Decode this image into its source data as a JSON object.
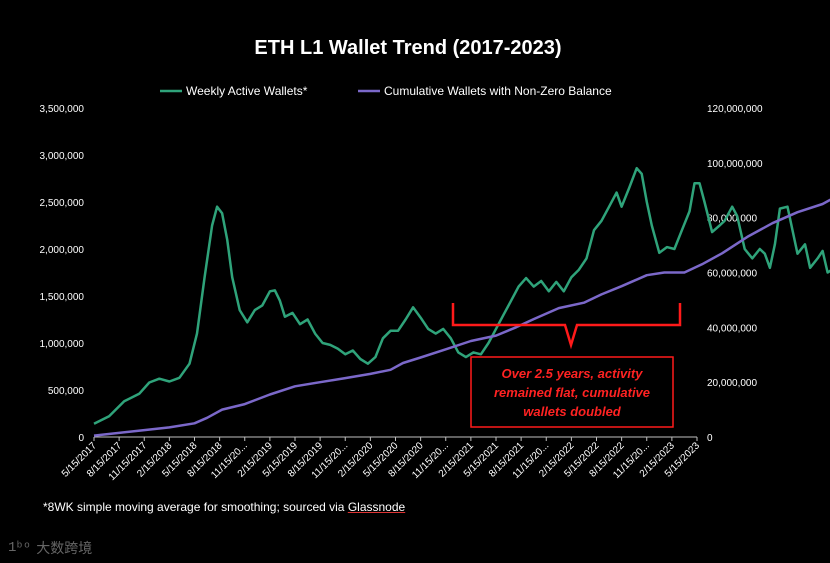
{
  "chart_data": {
    "type": "line",
    "title": "ETH L1 Wallet Trend (2017-2023)",
    "left_axis": {
      "min": 0,
      "max": 3500000,
      "ticks": [
        "0",
        "500,000",
        "1,000,000",
        "1,500,000",
        "2,000,000",
        "2,500,000",
        "3,000,000",
        "3,500,000"
      ],
      "tick_values": [
        0,
        500000,
        1000000,
        1500000,
        2000000,
        2500000,
        3000000,
        3500000
      ]
    },
    "right_axis": {
      "min": 0,
      "max": 120000000,
      "ticks": [
        "0",
        "20,000,000",
        "40,000,000",
        "60,000,000",
        "80,000,000",
        "100,000,000",
        "120,000,000"
      ],
      "tick_values": [
        0,
        20000000,
        40000000,
        60000000,
        80000000,
        100000000,
        120000000
      ]
    },
    "x_ticks": [
      "5/15/2017",
      "8/15/2017",
      "11/15/2017",
      "2/15/2018",
      "5/15/2018",
      "8/15/2018",
      "11/15/20...",
      "2/15/2019",
      "5/15/2019",
      "8/15/2019",
      "11/15/20...",
      "2/15/2020",
      "5/15/2020",
      "8/15/2020",
      "11/15/20...",
      "2/15/2021",
      "5/15/2021",
      "8/15/2021",
      "11/15/20...",
      "2/15/2022",
      "5/15/2022",
      "8/15/2022",
      "11/15/20...",
      "2/15/2023",
      "5/15/2023"
    ],
    "grid": false,
    "legend_position": "top",
    "series": [
      {
        "name": "Weekly Active Wallets*",
        "axis": "left",
        "color": "#2fa37a",
        "points": [
          [
            0,
            140000
          ],
          [
            0.6,
            220000
          ],
          [
            1.2,
            380000
          ],
          [
            1.8,
            460000
          ],
          [
            2.2,
            580000
          ],
          [
            2.6,
            620000
          ],
          [
            3.0,
            590000
          ],
          [
            3.4,
            630000
          ],
          [
            3.8,
            780000
          ],
          [
            4.1,
            1100000
          ],
          [
            4.4,
            1700000
          ],
          [
            4.7,
            2250000
          ],
          [
            4.9,
            2450000
          ],
          [
            5.1,
            2380000
          ],
          [
            5.3,
            2100000
          ],
          [
            5.5,
            1700000
          ],
          [
            5.8,
            1350000
          ],
          [
            6.1,
            1220000
          ],
          [
            6.4,
            1350000
          ],
          [
            6.7,
            1400000
          ],
          [
            7.0,
            1550000
          ],
          [
            7.2,
            1560000
          ],
          [
            7.4,
            1450000
          ],
          [
            7.6,
            1280000
          ],
          [
            7.9,
            1320000
          ],
          [
            8.2,
            1200000
          ],
          [
            8.5,
            1250000
          ],
          [
            8.8,
            1100000
          ],
          [
            9.1,
            1000000
          ],
          [
            9.4,
            980000
          ],
          [
            9.7,
            940000
          ],
          [
            10.0,
            880000
          ],
          [
            10.3,
            920000
          ],
          [
            10.6,
            830000
          ],
          [
            10.9,
            780000
          ],
          [
            11.2,
            850000
          ],
          [
            11.5,
            1050000
          ],
          [
            11.8,
            1130000
          ],
          [
            12.1,
            1130000
          ],
          [
            12.4,
            1250000
          ],
          [
            12.7,
            1380000
          ],
          [
            13.0,
            1270000
          ],
          [
            13.3,
            1150000
          ],
          [
            13.6,
            1100000
          ],
          [
            13.9,
            1150000
          ],
          [
            14.2,
            1050000
          ],
          [
            14.5,
            900000
          ],
          [
            14.8,
            850000
          ],
          [
            15.1,
            900000
          ],
          [
            15.4,
            880000
          ],
          [
            15.7,
            1000000
          ],
          [
            16.0,
            1150000
          ],
          [
            16.3,
            1300000
          ],
          [
            16.6,
            1450000
          ],
          [
            16.9,
            1600000
          ],
          [
            17.2,
            1690000
          ],
          [
            17.5,
            1600000
          ],
          [
            17.8,
            1660000
          ],
          [
            18.1,
            1550000
          ],
          [
            18.4,
            1650000
          ],
          [
            18.7,
            1550000
          ],
          [
            19.0,
            1700000
          ],
          [
            19.3,
            1780000
          ],
          [
            19.6,
            1900000
          ],
          [
            19.9,
            2200000
          ],
          [
            20.2,
            2300000
          ],
          [
            20.5,
            2450000
          ],
          [
            20.8,
            2600000
          ],
          [
            21.0,
            2450000
          ],
          [
            21.3,
            2650000
          ],
          [
            21.6,
            2860000
          ],
          [
            21.8,
            2800000
          ],
          [
            22.0,
            2500000
          ],
          [
            22.2,
            2250000
          ],
          [
            22.5,
            1960000
          ],
          [
            22.8,
            2020000
          ],
          [
            23.1,
            2000000
          ],
          [
            23.4,
            2200000
          ],
          [
            23.7,
            2400000
          ],
          [
            23.9,
            2700000
          ],
          [
            24.1,
            2700000
          ],
          [
            24.3,
            2500000
          ],
          [
            24.6,
            2180000
          ],
          [
            24.9,
            2250000
          ],
          [
            25.1,
            2300000
          ],
          [
            25.4,
            2450000
          ],
          [
            25.6,
            2350000
          ],
          [
            25.9,
            2000000
          ],
          [
            26.2,
            1900000
          ],
          [
            26.5,
            2000000
          ],
          [
            26.7,
            1950000
          ],
          [
            26.9,
            1800000
          ],
          [
            27.1,
            2050000
          ],
          [
            27.3,
            2430000
          ],
          [
            27.6,
            2450000
          ],
          [
            27.8,
            2200000
          ],
          [
            28.0,
            1950000
          ],
          [
            28.3,
            2050000
          ],
          [
            28.5,
            1800000
          ],
          [
            28.8,
            1900000
          ],
          [
            29.0,
            1980000
          ],
          [
            29.2,
            1750000
          ],
          [
            29.5,
            1800000
          ],
          [
            29.7,
            1600000
          ],
          [
            30.0,
            1600000
          ],
          [
            30.2,
            1780000
          ],
          [
            30.5,
            1750000
          ],
          [
            30.8,
            1830000
          ],
          [
            31.0,
            1700000
          ],
          [
            31.3,
            1800000
          ],
          [
            31.6,
            1850000
          ],
          [
            31.8,
            1850000
          ]
        ]
      },
      {
        "name": "Cumulative Wallets with Non-Zero Balance",
        "axis": "right",
        "color": "#7b68c9",
        "points": [
          [
            0,
            500000
          ],
          [
            2,
            2500000
          ],
          [
            3,
            3500000
          ],
          [
            4,
            5000000
          ],
          [
            4.5,
            7000000
          ],
          [
            5.1,
            10000000
          ],
          [
            6,
            12000000
          ],
          [
            7,
            15500000
          ],
          [
            8,
            18500000
          ],
          [
            9,
            20000000
          ],
          [
            10,
            21500000
          ],
          [
            11,
            23000000
          ],
          [
            11.8,
            24500000
          ],
          [
            12.3,
            27000000
          ],
          [
            13,
            29000000
          ],
          [
            14,
            32000000
          ],
          [
            15,
            35000000
          ],
          [
            16,
            37000000
          ],
          [
            16.8,
            40000000
          ],
          [
            17.5,
            43000000
          ],
          [
            18.5,
            47000000
          ],
          [
            19.5,
            49000000
          ],
          [
            20.2,
            52000000
          ],
          [
            21,
            55000000
          ],
          [
            21.5,
            57000000
          ],
          [
            22,
            59000000
          ],
          [
            22.7,
            60000000
          ],
          [
            23.5,
            60000000
          ],
          [
            24.2,
            63000000
          ],
          [
            25,
            67000000
          ],
          [
            26,
            73000000
          ],
          [
            27,
            78000000
          ],
          [
            28,
            82000000
          ],
          [
            29,
            85000000
          ],
          [
            30,
            90000000
          ],
          [
            31,
            95000000
          ],
          [
            31.8,
            99000000
          ]
        ]
      }
    ],
    "annotations": [
      {
        "text": "Over 2.5 years, activity remained flat, cumulative wallets doubled",
        "lines": [
          "Over 2.5 years, activity",
          "remained flat, cumulative",
          "wallets doubled"
        ],
        "color": "#ff2222"
      }
    ]
  },
  "footnote": {
    "text": "*8WK simple moving average for smoothing; sourced via ",
    "link": "Glassnode"
  },
  "watermark": {
    "logo": "1ᵇᵒ",
    "text": "大数跨境"
  }
}
